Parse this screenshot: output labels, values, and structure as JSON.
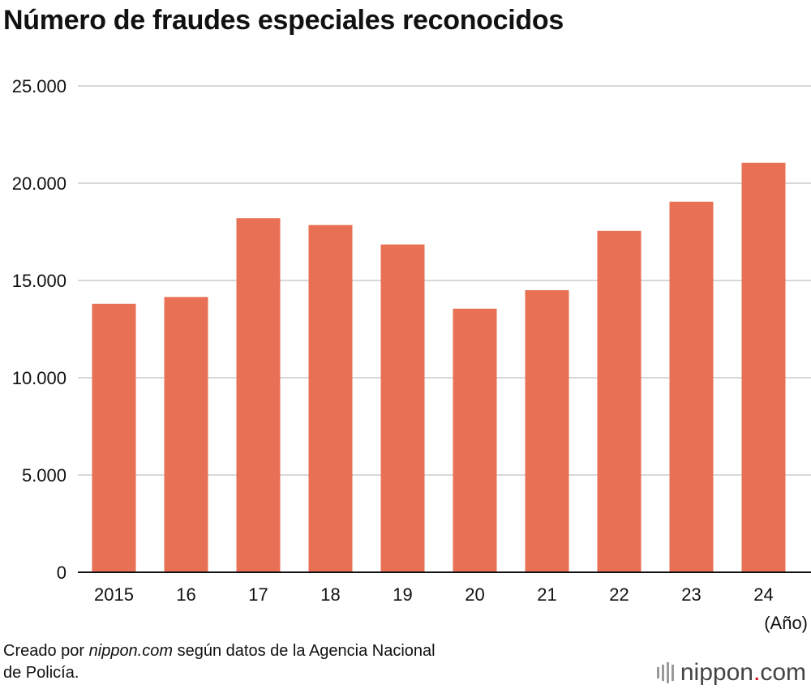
{
  "title": "Número de fraudes especiales reconocidos",
  "source": {
    "prefix": "Creado por ",
    "site": "nippon.com",
    "suffix_line1": " según datos de la Agencia Nacional",
    "line2": "de Policía."
  },
  "logo": {
    "name": "nippon",
    "dot": ".",
    "tld": "com"
  },
  "colors": {
    "bar": "#e87054",
    "grid": "#cccccc",
    "axis": "#111111",
    "text": "#111111",
    "logo_dot": "#d7000f"
  },
  "chart_data": {
    "type": "bar",
    "title": "Número de fraudes especiales reconocidos",
    "categories": [
      "2015",
      "16",
      "17",
      "18",
      "19",
      "20",
      "21",
      "22",
      "23",
      "24"
    ],
    "values": [
      13800,
      14150,
      18200,
      17850,
      16850,
      13550,
      14500,
      17550,
      19050,
      21050
    ],
    "xlabel": "(Año)",
    "ylabel": "",
    "ylim": [
      0,
      25000
    ],
    "yticks": [
      0,
      5000,
      10000,
      15000,
      20000,
      25000
    ],
    "ytick_labels": [
      "0",
      "5.000",
      "10.000",
      "15.000",
      "20.000",
      "25.000"
    ],
    "grid": true,
    "legend": "none"
  }
}
